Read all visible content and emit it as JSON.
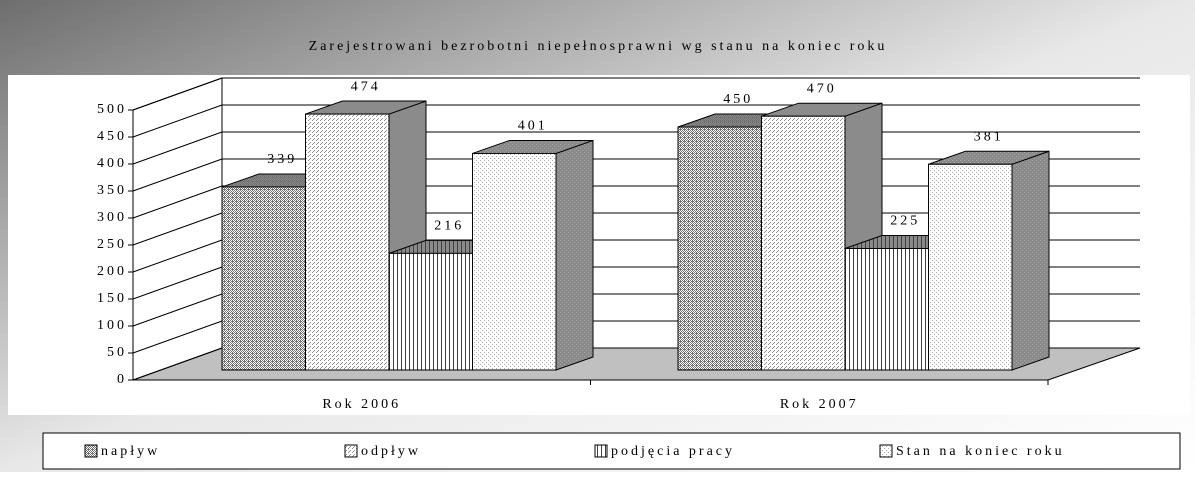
{
  "chart_data": {
    "type": "bar3d",
    "title": "Zarejestrowani bezrobotni niepełnosprawni wg stanu na koniec roku",
    "categories": [
      "Rok 2006",
      "Rok 2007"
    ],
    "series": [
      {
        "name": "napływ",
        "color": "#707070",
        "values": [
          339,
          450
        ]
      },
      {
        "name": "odpływ",
        "color": "#909090",
        "values": [
          474,
          470
        ]
      },
      {
        "name": "podjęcia pracy",
        "color": "#404040",
        "values": [
          216,
          225
        ]
      },
      {
        "name": "Stan na koniec roku",
        "color": "#a8a8a8",
        "values": [
          401,
          381
        ]
      }
    ],
    "ylim": [
      0,
      500
    ],
    "yticks": [
      0,
      50,
      100,
      150,
      200,
      250,
      300,
      350,
      400,
      450,
      500
    ],
    "grid": true,
    "legend": "bottom"
  }
}
